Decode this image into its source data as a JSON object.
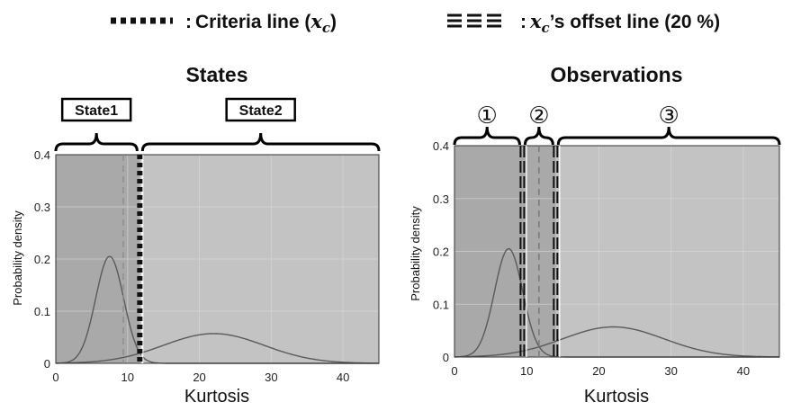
{
  "legend": {
    "criteria_label": "Criteria line (",
    "criteria_sym": "x",
    "criteria_sub": "c",
    "criteria_close": ")",
    "offset_sym": "x",
    "offset_sub": "c",
    "offset_label": "’s offset line (20 %)",
    "colon": ":"
  },
  "chart_data": [
    {
      "type": "line",
      "title": "States",
      "xlabel": "Kurtosis",
      "ylabel": "Probability density",
      "xlim": [
        0,
        45
      ],
      "ylim": [
        0,
        0.4
      ],
      "xticks": [
        "0",
        "10",
        "20",
        "30",
        "40"
      ],
      "yticks": [
        "0",
        "0.1",
        "0.2",
        "0.3",
        "0.4"
      ],
      "grid": true,
      "series": [
        {
          "mean": 7.5,
          "sd": 1.95,
          "peak": 0.205
        },
        {
          "mean": 22.0,
          "sd": 7.0,
          "peak": 0.057
        }
      ],
      "criteria_x": 11.7,
      "mean_marker_x": 9.4,
      "regions": [
        {
          "label": "State1",
          "x_start": 0,
          "x_end": 11.7
        },
        {
          "label": "State2",
          "x_start": 11.7,
          "x_end": 45
        }
      ]
    },
    {
      "type": "line",
      "title": "Observations",
      "xlabel": "Kurtosis",
      "ylabel": "Probability density",
      "xlim": [
        0,
        45
      ],
      "ylim": [
        0,
        0.4
      ],
      "xticks": [
        "0",
        "10",
        "20",
        "30",
        "40"
      ],
      "yticks": [
        "0",
        "0.1",
        "0.2",
        "0.3",
        "0.4"
      ],
      "grid": true,
      "series": [
        {
          "mean": 7.5,
          "sd": 1.95,
          "peak": 0.205
        },
        {
          "mean": 22.0,
          "sd": 7.0,
          "peak": 0.057
        }
      ],
      "criteria_x": 11.7,
      "offset_lines_x": [
        9.4,
        14.0
      ],
      "regions": [
        {
          "label": "①",
          "x_start": 0,
          "x_end": 9.4
        },
        {
          "label": "②",
          "x_start": 9.4,
          "x_end": 14.0
        },
        {
          "label": "③",
          "x_start": 14.0,
          "x_end": 45
        }
      ]
    }
  ]
}
